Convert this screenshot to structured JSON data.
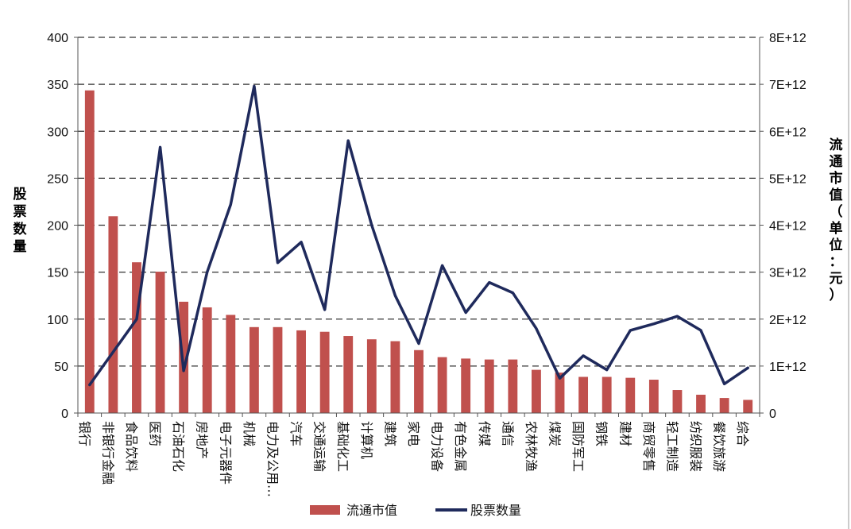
{
  "chart_data": {
    "type": "bar",
    "categories": [
      "银行",
      "非银行金融",
      "食品饮料",
      "医药",
      "石油石化",
      "房地产",
      "电子元器件",
      "机械",
      "电力及公用…",
      "汽车",
      "交通运输",
      "基础化工",
      "计算机",
      "建筑",
      "家电",
      "电力设备",
      "有色金属",
      "传媒",
      "通信",
      "农林牧渔",
      "煤炭",
      "国防军工",
      "钢铁",
      "建材",
      "商贸零售",
      "轻工制造",
      "纺织服装",
      "餐饮旅游",
      "综合"
    ],
    "series": [
      {
        "name": "流通市值",
        "type": "bar",
        "axis": "right",
        "color": "#C0504D",
        "values": [
          6870000000000.0,
          4190000000000.0,
          3210000000000.0,
          3010000000000.0,
          2370000000000.0,
          2250000000000.0,
          2090000000000.0,
          1830000000000.0,
          1830000000000.0,
          1760000000000.0,
          1730000000000.0,
          1640000000000.0,
          1570000000000.0,
          1530000000000.0,
          1340000000000.0,
          1190000000000.0,
          1160000000000.0,
          1140000000000.0,
          1140000000000.0,
          920000000000.0,
          860000000000.0,
          770000000000.0,
          770000000000.0,
          750000000000.0,
          710000000000.0,
          490000000000.0,
          390000000000.0,
          320000000000.0,
          280000000000.0
        ]
      },
      {
        "name": "股票数量",
        "type": "line",
        "axis": "left",
        "color": "#1F2A5C",
        "values": [
          30,
          65,
          100,
          283,
          45,
          150,
          222,
          348,
          160,
          182,
          110,
          290,
          200,
          125,
          74,
          157,
          107,
          139,
          128,
          90,
          37,
          61,
          46,
          88,
          95,
          103,
          88,
          31,
          48
        ]
      }
    ],
    "left_axis": {
      "label": "股票数量",
      "ylim": [
        0,
        400
      ],
      "ticks": [
        "0",
        "50",
        "100",
        "150",
        "200",
        "250",
        "300",
        "350",
        "400"
      ]
    },
    "right_axis": {
      "label": "流通市值（单位：元）",
      "ylim": [
        0,
        8000000000000.0
      ],
      "ticks": [
        "0",
        "1E+12",
        "2E+12",
        "3E+12",
        "4E+12",
        "5E+12",
        "6E+12",
        "7E+12",
        "8E+12"
      ]
    },
    "grid": true,
    "legend_position": "bottom"
  }
}
